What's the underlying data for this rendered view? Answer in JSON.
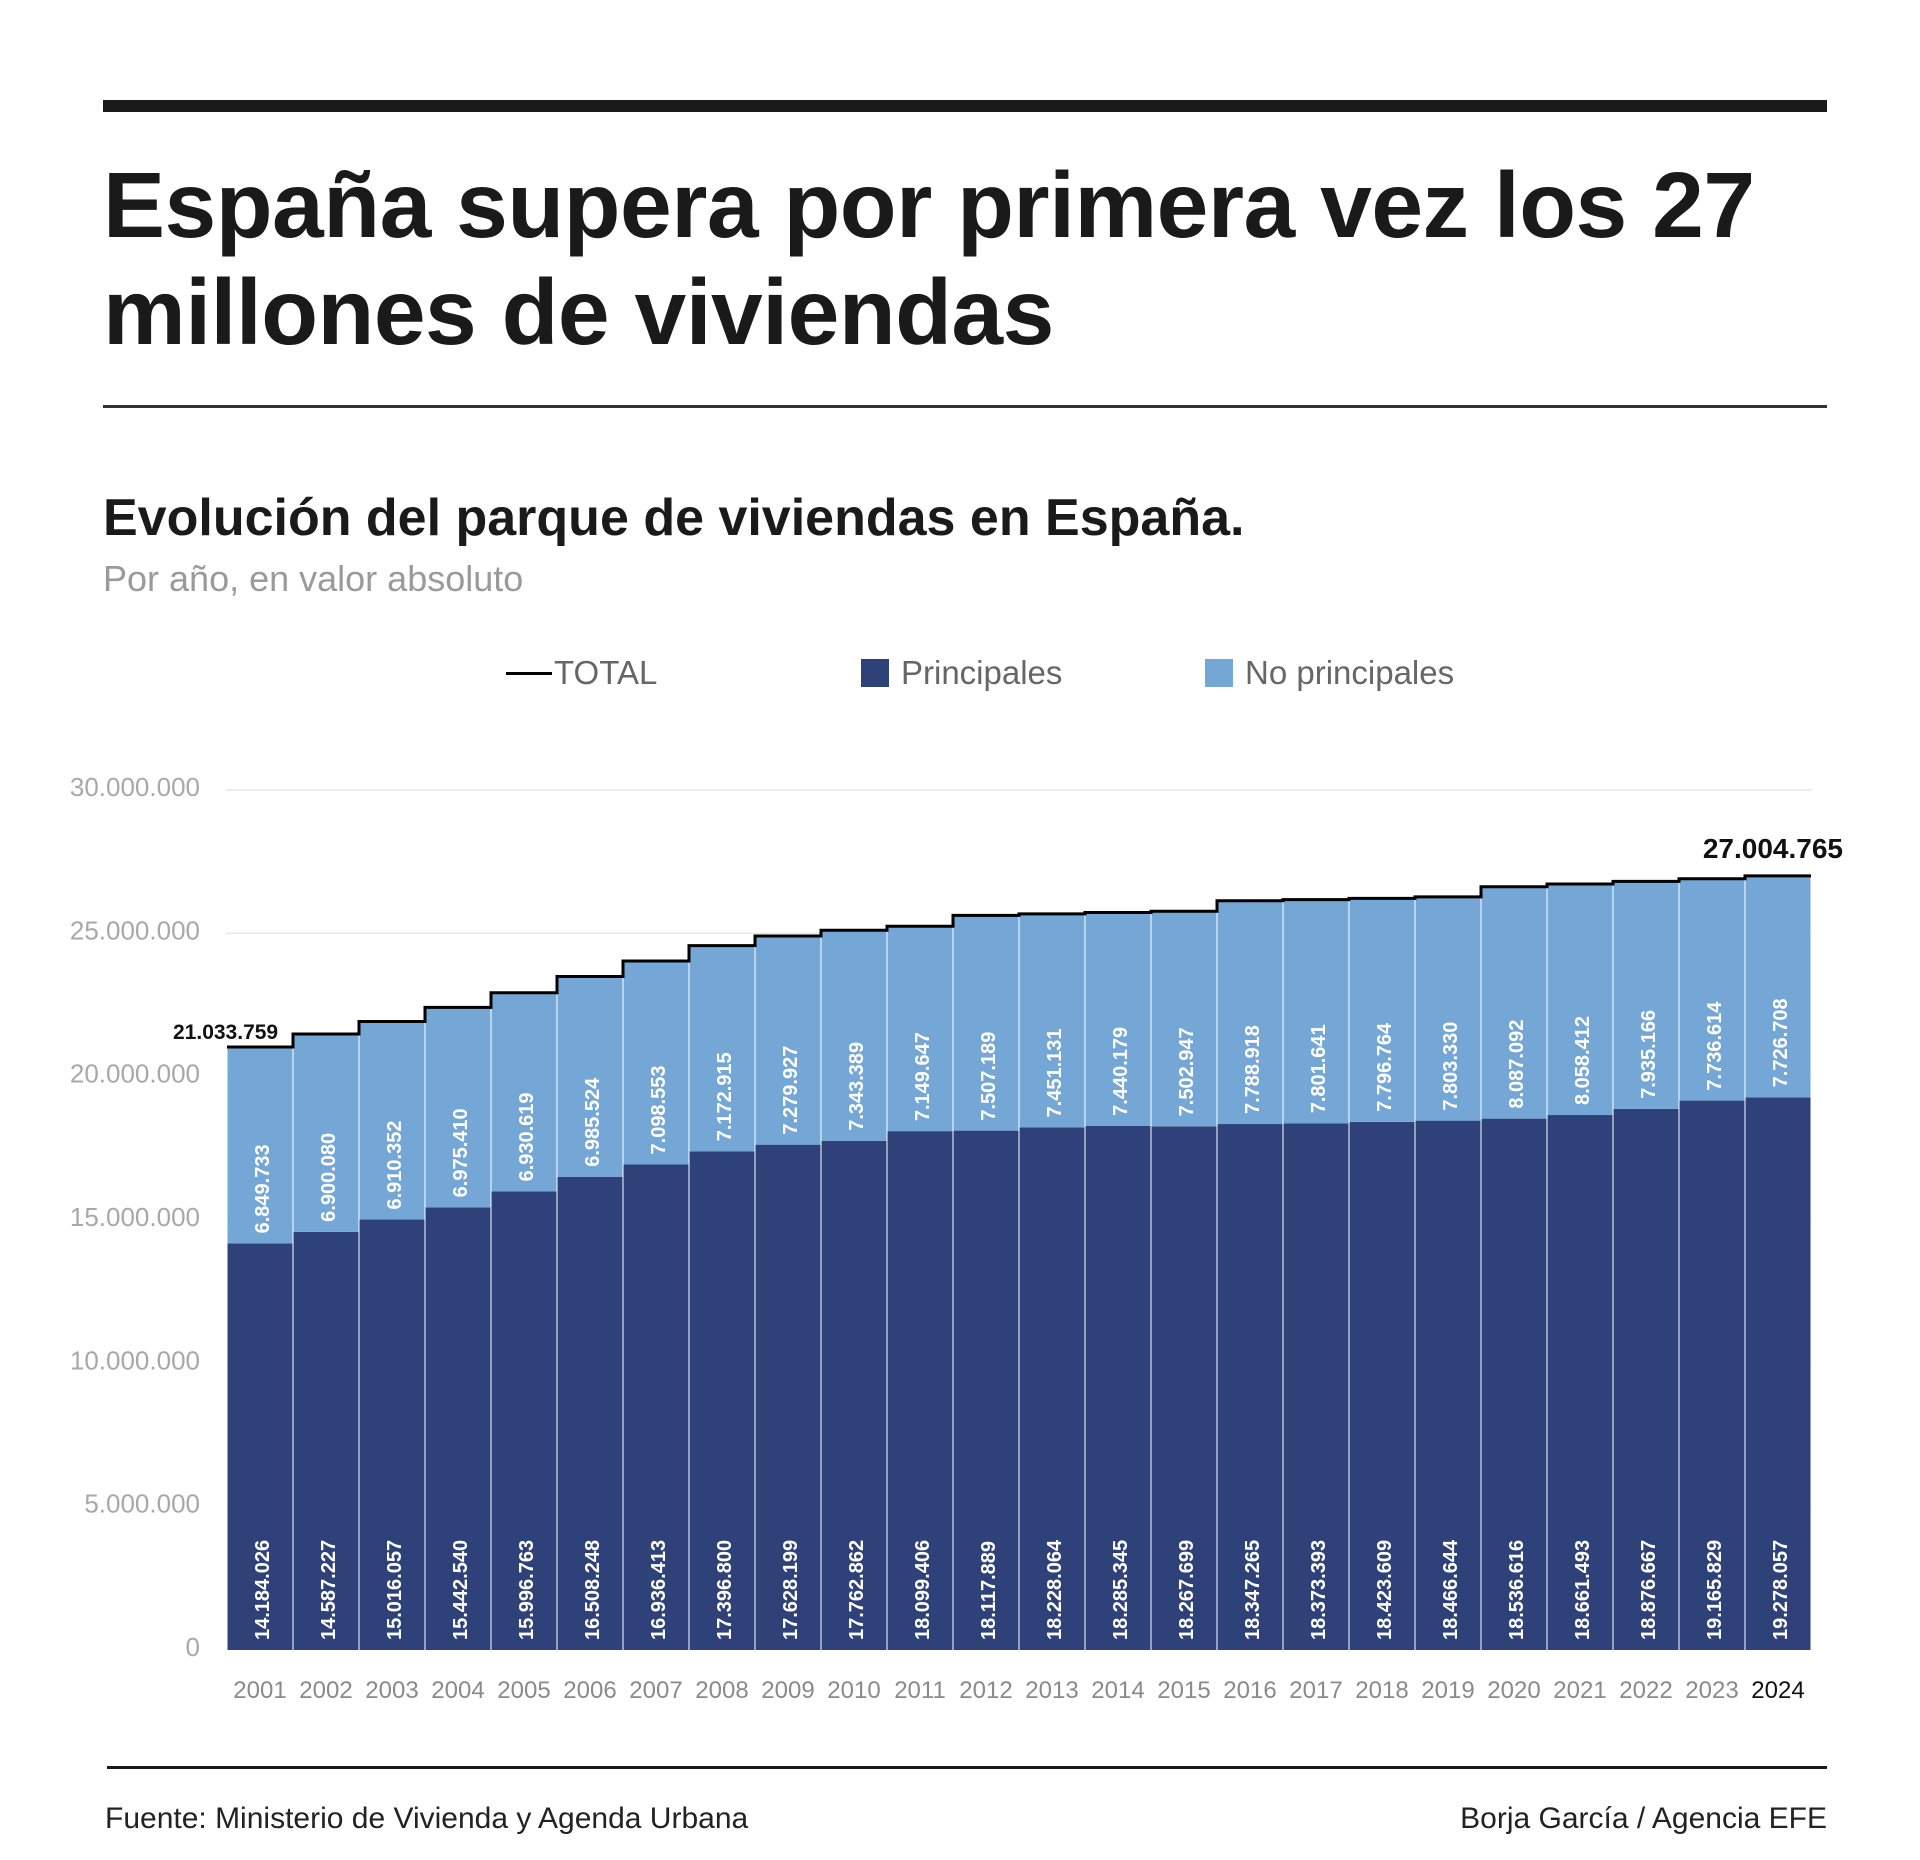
{
  "headline": "España supera por primera vez los 27 millones de viviendas",
  "legend": {
    "total": "TOTAL",
    "principales": "Principales",
    "no_principales": "No principales"
  },
  "colors": {
    "principales": "#2e4179",
    "no_principales": "#75a7d6",
    "total_line": "#000000",
    "gridline": "#e6e6e6",
    "tick_text": "#a8a8a8",
    "year_text": "#8a8a8a"
  },
  "chart_data": {
    "type": "bar",
    "title": "Evolución del parque de viviendas en España.",
    "subtitle": "Por año, en valor absoluto",
    "stacked": true,
    "categories": [
      "2001",
      "2002",
      "2003",
      "2004",
      "2005",
      "2006",
      "2007",
      "2008",
      "2009",
      "2010",
      "2011",
      "2012",
      "2013",
      "2014",
      "2015",
      "2016",
      "2017",
      "2018",
      "2019",
      "2020",
      "2021",
      "2022",
      "2023",
      "2024"
    ],
    "series": [
      {
        "name": "Principales",
        "values": [
          14184026,
          14587227,
          15016057,
          15442540,
          15996763,
          16508248,
          16936413,
          17396800,
          17628199,
          17762862,
          18099406,
          18117889,
          18228064,
          18285345,
          18267699,
          18347265,
          18373393,
          18423609,
          18466644,
          18536616,
          18661493,
          18876667,
          19165829,
          19278057
        ],
        "labels": [
          "14.184.026",
          "14.587.227",
          "15.016.057",
          "15.442.540",
          "15.996.763",
          "16.508.248",
          "16.936.413",
          "17.396.800",
          "17.628.199",
          "17.762.862",
          "18.099.406",
          "18.117.889",
          "18.228.064",
          "18.285.345",
          "18.267.699",
          "18.347.265",
          "18.373.393",
          "18.423.609",
          "18.466.644",
          "18.536.616",
          "18.661.493",
          "18.876.667",
          "19.165.829",
          "19.278.057"
        ]
      },
      {
        "name": "No principales",
        "values": [
          6849733,
          6900080,
          6910352,
          6975410,
          6930619,
          6985524,
          7098553,
          7172915,
          7279927,
          7343389,
          7149647,
          7507189,
          7451131,
          7440179,
          7502947,
          7788918,
          7801641,
          7796764,
          7803330,
          8087092,
          8058412,
          7935166,
          7736614,
          7726708
        ],
        "labels": [
          "6.849.733",
          "6.900.080",
          "6.910.352",
          "6.975.410",
          "6.930.619",
          "6.985.524",
          "7.098.553",
          "7.172.915",
          "7.279.927",
          "7.343.389",
          "7.149.647",
          "7.507.189",
          "7.451.131",
          "7.440.179",
          "7.502.947",
          "7.788.918",
          "7.801.641",
          "7.796.764",
          "7.803.330",
          "8.087.092",
          "8.058.412",
          "7.935.166",
          "7.736.614",
          "7.726.708"
        ]
      },
      {
        "name": "TOTAL",
        "type": "line"
      }
    ],
    "annotations": [
      {
        "category": "2001",
        "text": "21.033.759"
      },
      {
        "category": "2024",
        "text": "27.004.765"
      }
    ],
    "yticks": [
      0,
      5000000,
      10000000,
      15000000,
      20000000,
      25000000,
      30000000
    ],
    "ytick_labels": [
      "0",
      "5.000.000",
      "10.000.000",
      "15.000.000",
      "20.000.000",
      "25.000.000",
      "30.000.000"
    ],
    "ylim": [
      0,
      30000000
    ],
    "grid": true,
    "legend_position": "top"
  },
  "footer": {
    "source": "Fuente: Ministerio de Vivienda y Agenda Urbana",
    "credit": "Borja García / Agencia EFE"
  }
}
